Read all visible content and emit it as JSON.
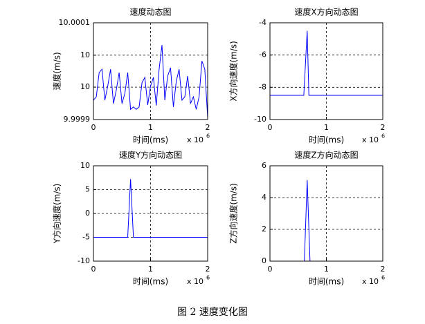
{
  "chart_data": [
    {
      "type": "line",
      "title": "速度动态图",
      "xlabel": "时间(ms)",
      "ylabel": "速度(m/s)",
      "x_multiplier": "x 10",
      "x_multiplier_power": "6",
      "x": [
        0,
        50000,
        100000,
        150000,
        200000,
        250000,
        300000,
        350000,
        400000,
        450000,
        500000,
        550000,
        600000,
        650000,
        700000,
        750000,
        800000,
        850000,
        900000,
        950000,
        1000000,
        1050000,
        1100000,
        1150000,
        1200000,
        1250000,
        1300000,
        1350000,
        1400000,
        1450000,
        1500000,
        1550000,
        1600000,
        1650000,
        1700000,
        1750000,
        1800000,
        1850000,
        1900000,
        1950000,
        2000000
      ],
      "values": [
        9.99994,
        9.999947,
        9.999997,
        10.000004,
        9.99994,
        9.999969,
        10.000004,
        9.999933,
        9.999961,
        9.999997,
        9.999933,
        9.999954,
        9.999997,
        9.999921,
        9.999926,
        9.999921,
        9.999926,
        9.999976,
        9.999987,
        9.99993,
        9.999969,
        9.999987,
        9.999929,
        10.000004,
        10.000054,
        9.99994,
        9.99999,
        10.000007,
        9.999926,
        9.999979,
        10.000004,
        9.99994,
        9.999947,
        9.99999,
        9.999933,
        9.999947,
        9.999921,
        9.999947,
        10.000021,
        10.000004,
        9.999904
      ],
      "color": "#0000ff",
      "xlim": [
        0,
        2000000
      ],
      "ylim": [
        9.9999,
        10.0001
      ],
      "xticks": [
        {
          "value": 0,
          "label": "0"
        },
        {
          "value": 1000000,
          "label": "1"
        },
        {
          "value": 2000000,
          "label": "2"
        }
      ],
      "yticks": [
        9.9999,
        {
          "value": 9.999967,
          "label": "10"
        },
        {
          "value": 10.000033,
          "label": "10"
        },
        10.0001
      ],
      "grid": true
    },
    {
      "type": "line",
      "title": "速度X方向动态图",
      "xlabel": "时间(ms)",
      "ylabel": "X方向速度(m/s)",
      "x_multiplier": "x 10",
      "x_multiplier_power": "6",
      "x": [
        0,
        600000,
        660000,
        690000,
        700000,
        2000000
      ],
      "values": [
        -8.5,
        -8.5,
        -4.5,
        -8.5,
        -8.5,
        -8.5
      ],
      "color": "#0000ff",
      "xlim": [
        0,
        2000000
      ],
      "ylim": [
        -10,
        -4
      ],
      "xticks": [
        {
          "value": 0,
          "label": "0"
        },
        {
          "value": 1000000,
          "label": "1"
        },
        {
          "value": 2000000,
          "label": "2"
        }
      ],
      "yticks": [
        -10,
        -8,
        -6,
        -4
      ],
      "grid": true
    },
    {
      "type": "line",
      "title": "速度Y方向动态图",
      "xlabel": "时间(ms)",
      "ylabel": "Y方向速度(m/s)",
      "x_multiplier": "x 10",
      "x_multiplier_power": "6",
      "x": [
        0,
        600000,
        650000,
        700000,
        2000000
      ],
      "values": [
        -5,
        -5,
        7.2,
        -5,
        -5
      ],
      "color": "#0000ff",
      "xlim": [
        0,
        2000000
      ],
      "ylim": [
        -10,
        10
      ],
      "xticks": [
        {
          "value": 0,
          "label": "0"
        },
        {
          "value": 1000000,
          "label": "1"
        },
        {
          "value": 2000000,
          "label": "2"
        }
      ],
      "yticks": [
        -10,
        -5,
        0,
        5,
        10
      ],
      "grid": true
    },
    {
      "type": "line",
      "title": "速度Z方向动态图",
      "xlabel": "时间(ms)",
      "ylabel": "Z方向速度(m/s)",
      "x_multiplier": "x 10",
      "x_multiplier_power": "6",
      "x": [
        0,
        610000,
        660000,
        710000,
        2000000
      ],
      "values": [
        0,
        0,
        5.1,
        0,
        0
      ],
      "color": "#0000ff",
      "xlim": [
        0,
        2000000
      ],
      "ylim": [
        0,
        6
      ],
      "xticks": [
        {
          "value": 0,
          "label": "0"
        },
        {
          "value": 1000000,
          "label": "1"
        },
        {
          "value": 2000000,
          "label": "2"
        }
      ],
      "yticks": [
        0,
        2,
        4,
        6
      ],
      "grid": true
    }
  ],
  "caption": "图 2  速度变化图"
}
